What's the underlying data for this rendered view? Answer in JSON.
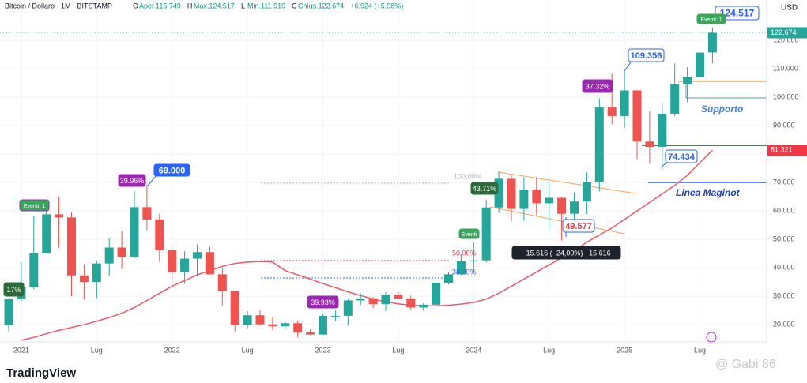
{
  "header": {
    "symbol": "Bitcoin / Dollaro · 1M · BITSTAMP",
    "ohlc": [
      {
        "key": "O",
        "text": "Aper.115.749"
      },
      {
        "key": "H",
        "text": "Max.124.517"
      },
      {
        "key": "L",
        "text": "Min.111.919"
      },
      {
        "key": "C",
        "text": "Chius.122.674"
      }
    ],
    "change": "+6.924 (+5,98%)"
  },
  "chart_data": {
    "type": "candlestick",
    "currency": "USD",
    "x": [
      "2020-12",
      "2021-01",
      "2021-02",
      "2021-03",
      "2021-04",
      "2021-05",
      "2021-06",
      "2021-07",
      "2021-08",
      "2021-09",
      "2021-10",
      "2021-11",
      "2021-12",
      "2022-01",
      "2022-02",
      "2022-03",
      "2022-04",
      "2022-05",
      "2022-06",
      "2022-07",
      "2022-08",
      "2022-09",
      "2022-10",
      "2022-11",
      "2022-12",
      "2023-01",
      "2023-02",
      "2023-03",
      "2023-04",
      "2023-05",
      "2023-06",
      "2023-07",
      "2023-08",
      "2023-09",
      "2023-10",
      "2023-11",
      "2023-12",
      "2024-01",
      "2024-02",
      "2024-03",
      "2024-04",
      "2024-05",
      "2024-06",
      "2024-07",
      "2024-08",
      "2024-09",
      "2024-10",
      "2024-11",
      "2024-12",
      "2025-01",
      "2025-02",
      "2025-03",
      "2025-04",
      "2025-05",
      "2025-06",
      "2025-07",
      "2025-08"
    ],
    "open": [
      19700,
      29000,
      33100,
      45100,
      58800,
      57700,
      37300,
      35000,
      41500,
      47100,
      43800,
      61300,
      57000,
      46200,
      38500,
      43200,
      45500,
      37700,
      31800,
      19900,
      23300,
      20100,
      19400,
      20500,
      17200,
      16500,
      23100,
      23100,
      28500,
      29200,
      27200,
      30500,
      29200,
      26000,
      27000,
      34700,
      37700,
      42300,
      42600,
      61200,
      71300,
      60700,
      67500,
      62700,
      64600,
      59000,
      63300,
      70200,
      96400,
      93400,
      102400,
      84400,
      82500,
      94200,
      104600,
      107100,
      115749
    ],
    "high": [
      29300,
      41900,
      58300,
      61700,
      64900,
      59500,
      41300,
      42400,
      50500,
      52900,
      67000,
      69000,
      59000,
      47900,
      45800,
      48200,
      47400,
      40000,
      31900,
      24700,
      25200,
      22800,
      21000,
      21400,
      18400,
      23900,
      25200,
      29200,
      31000,
      29800,
      31400,
      31800,
      30200,
      27500,
      35200,
      38400,
      44700,
      48900,
      64000,
      73800,
      72800,
      71900,
      71900,
      70000,
      65000,
      66500,
      73600,
      99600,
      108400,
      109356,
      102500,
      95000,
      97900,
      111900,
      110600,
      123200,
      124517
    ],
    "low": [
      17600,
      28100,
      32400,
      45000,
      47000,
      30000,
      28800,
      29300,
      37300,
      39600,
      43300,
      53200,
      42000,
      33000,
      34300,
      37200,
      37600,
      26700,
      17600,
      18800,
      19600,
      18100,
      18200,
      15500,
      16300,
      16500,
      21400,
      19600,
      26900,
      25800,
      24800,
      28900,
      25200,
      24900,
      26600,
      34100,
      37600,
      38500,
      41900,
      59300,
      56500,
      56600,
      58400,
      53500,
      49577,
      52600,
      58900,
      66800,
      90500,
      89200,
      78200,
      76600,
      74434,
      93300,
      98200,
      105100,
      111919
    ],
    "close": [
      29000,
      33100,
      45100,
      58800,
      57700,
      37300,
      35000,
      41500,
      47100,
      43800,
      61300,
      57000,
      46200,
      38500,
      43200,
      45500,
      37700,
      31800,
      19900,
      23300,
      20100,
      19400,
      20500,
      17200,
      16500,
      23100,
      23100,
      28500,
      29200,
      27200,
      30500,
      29200,
      26000,
      27000,
      34700,
      37700,
      42300,
      42600,
      61200,
      71300,
      60700,
      67500,
      62700,
      64600,
      59000,
      63300,
      70200,
      96400,
      93400,
      102400,
      84400,
      82500,
      94200,
      104600,
      107100,
      115700,
      122674
    ],
    "up_color": "#26a69a",
    "down_color": "#ef5350",
    "moving_average": {
      "color": "#ee5a6a",
      "values": [
        null,
        14500,
        15500,
        16800,
        18000,
        19000,
        20000,
        21200,
        22500,
        24000,
        26000,
        28500,
        31000,
        33500,
        35500,
        37500,
        39000,
        40500,
        41500,
        42000,
        42200,
        42000,
        39000,
        37500,
        36000,
        34400,
        33000,
        31500,
        30200,
        29000,
        28000,
        27300,
        26800,
        26600,
        26600,
        26800,
        27200,
        27800,
        29000,
        31000,
        33500,
        36000,
        38500,
        41000,
        43500,
        46000,
        49000,
        51500,
        54000,
        57000,
        60000,
        63000,
        66000,
        69000,
        72500,
        77000,
        81321
      ]
    },
    "ylim": [
      13900,
      134200
    ],
    "yticks": [
      {
        "value": 20000,
        "label": "20.000"
      },
      {
        "value": 30000,
        "label": "30.000"
      },
      {
        "value": 40000,
        "label": "40.000"
      },
      {
        "value": 50000,
        "label": "50.000"
      },
      {
        "value": 60000,
        "label": "60.000"
      },
      {
        "value": 70000,
        "label": "70.000"
      },
      {
        "value": 80000,
        "label": "80.000"
      },
      {
        "value": 90000,
        "label": "90.000"
      },
      {
        "value": 100000,
        "label": "100.000"
      },
      {
        "value": 110000,
        "label": "110.000"
      },
      {
        "value": 120000,
        "label": "120.000"
      }
    ],
    "xticks": [
      {
        "value": "2021-01",
        "label": "2021"
      },
      {
        "value": "2021-07",
        "label": "Lug"
      },
      {
        "value": "2022-01",
        "label": "2022"
      },
      {
        "value": "2022-07",
        "label": "Lug"
      },
      {
        "value": "2023-01",
        "label": "2023"
      },
      {
        "value": "2023-07",
        "label": "Lug"
      },
      {
        "value": "2024-01",
        "label": "2024"
      },
      {
        "value": "2024-07",
        "label": "Lug"
      },
      {
        "value": "2025-01",
        "label": "2025"
      },
      {
        "value": "2025-07",
        "label": "Lug"
      }
    ],
    "grid": true,
    "price_labels": [
      {
        "value": 122674,
        "label": "122.674",
        "color": "#26a69a"
      },
      {
        "value": 81321,
        "label": "81.321",
        "color": "#f23645"
      }
    ],
    "annotations": [
      "69.000",
      "109.356",
      "124.517",
      "74.434",
      "49.577",
      "Supporto",
      "Linea Maginot",
      "39.96%",
      "39.93%",
      "37.32%",
      "43.71%",
      "Eventi: 1",
      "Eventi",
      "Eventi: 1",
      "17%",
      "100,00%",
      "50,00%",
      "38,20%",
      "−15.616 (−24,00%) −15.616"
    ]
  },
  "footer": {
    "logo": "TradingView",
    "watermark": "@ Gabi 86"
  }
}
